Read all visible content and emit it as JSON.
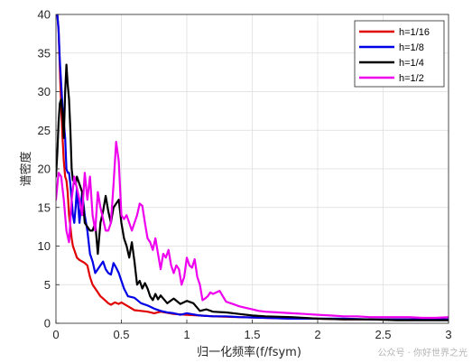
{
  "chart_data": {
    "type": "line",
    "title": "",
    "xlabel": "归一化频率(f/fsym)",
    "ylabel": "谱密度",
    "xlim": [
      0,
      3
    ],
    "ylim": [
      0,
      40
    ],
    "x_ticks": [
      "0",
      "0.5",
      "1",
      "1.5",
      "2",
      "2.5",
      "3"
    ],
    "y_ticks": [
      "0",
      "5",
      "10",
      "15",
      "20",
      "25",
      "30",
      "35",
      "40"
    ],
    "grid": true,
    "legend_position": "top-right",
    "series": [
      {
        "name": "h=1/16",
        "color": "#e00000",
        "x": [
          0.0,
          0.01,
          0.02,
          0.03,
          0.04,
          0.05,
          0.06,
          0.07,
          0.08,
          0.09,
          0.1,
          0.11,
          0.12,
          0.13,
          0.14,
          0.15,
          0.16,
          0.18,
          0.2,
          0.22,
          0.24,
          0.26,
          0.28,
          0.3,
          0.32,
          0.34,
          0.36,
          0.38,
          0.4,
          0.42,
          0.45,
          0.48,
          0.5,
          0.55,
          0.6,
          0.65,
          0.7,
          0.75,
          0.8,
          0.9,
          1.0,
          1.1,
          1.2,
          1.4,
          1.6,
          1.8,
          2.0,
          2.2,
          2.4,
          2.6,
          2.8,
          3.0
        ],
        "y": [
          40,
          40,
          38,
          33,
          28,
          24,
          21,
          19,
          18.5,
          17,
          14,
          12.5,
          11,
          10,
          9.5,
          9,
          8.5,
          8.2,
          8,
          7.8,
          7.5,
          6,
          5,
          4.5,
          4,
          3.5,
          3.2,
          2.9,
          2.6,
          2.4,
          2.7,
          2.5,
          2.7,
          2.2,
          1.7,
          1.6,
          1.5,
          1.3,
          1.5,
          1.2,
          1.1,
          1.0,
          0.9,
          0.8,
          0.7,
          0.6,
          0.6,
          0.5,
          0.5,
          0.5,
          0.5,
          0.5
        ]
      },
      {
        "name": "h=1/8",
        "color": "#0000e6",
        "x": [
          0.0,
          0.01,
          0.02,
          0.03,
          0.04,
          0.05,
          0.06,
          0.07,
          0.08,
          0.09,
          0.1,
          0.11,
          0.12,
          0.13,
          0.14,
          0.15,
          0.16,
          0.18,
          0.2,
          0.22,
          0.24,
          0.26,
          0.28,
          0.3,
          0.32,
          0.34,
          0.36,
          0.38,
          0.4,
          0.42,
          0.44,
          0.46,
          0.48,
          0.5,
          0.52,
          0.55,
          0.6,
          0.65,
          0.7,
          0.75,
          0.8,
          0.85,
          0.9,
          0.95,
          1.0,
          1.1,
          1.2,
          1.3,
          1.4,
          1.6,
          1.8,
          2.0,
          2.2,
          2.4,
          2.6,
          2.8,
          3.0
        ],
        "y": [
          40,
          40,
          38,
          34,
          31,
          28,
          26,
          24,
          20,
          19.5,
          19.5,
          18,
          16,
          14,
          13,
          15,
          17.5,
          13,
          17,
          14,
          12,
          9,
          8,
          6.5,
          7,
          7.5,
          8,
          7,
          6.5,
          6.3,
          7.8,
          7.2,
          6.5,
          5.5,
          4.5,
          3.5,
          3.3,
          2.6,
          2.3,
          1.9,
          1.6,
          1.4,
          1.3,
          1.1,
          1.3,
          1.0,
          0.9,
          0.9,
          0.8,
          0.7,
          0.6,
          0.6,
          0.6,
          0.5,
          0.5,
          0.5,
          0.5
        ]
      },
      {
        "name": "h=1/4",
        "color": "#000000",
        "x": [
          0.0,
          0.01,
          0.02,
          0.03,
          0.04,
          0.05,
          0.06,
          0.07,
          0.08,
          0.09,
          0.1,
          0.11,
          0.12,
          0.13,
          0.14,
          0.15,
          0.16,
          0.18,
          0.2,
          0.22,
          0.24,
          0.26,
          0.28,
          0.3,
          0.32,
          0.34,
          0.36,
          0.38,
          0.4,
          0.42,
          0.44,
          0.46,
          0.48,
          0.5,
          0.52,
          0.54,
          0.56,
          0.58,
          0.6,
          0.62,
          0.64,
          0.66,
          0.68,
          0.7,
          0.72,
          0.74,
          0.76,
          0.78,
          0.8,
          0.85,
          0.9,
          0.95,
          1.0,
          1.05,
          1.1,
          1.15,
          1.2,
          1.3,
          1.4,
          1.5,
          1.6,
          1.8,
          2.0,
          2.2,
          2.4,
          2.6,
          2.8,
          3.0
        ],
        "y": [
          19,
          22,
          26,
          28.5,
          29,
          27,
          24,
          30,
          33.5,
          31,
          29,
          25,
          20,
          18.5,
          18.7,
          18,
          19,
          18,
          17,
          13,
          12.5,
          12,
          12,
          13,
          9,
          13,
          14.5,
          16.5,
          14.5,
          13,
          15,
          15.5,
          16,
          13,
          11,
          10,
          8.5,
          10.5,
          8,
          5,
          5.5,
          4.5,
          5.2,
          4.5,
          3.5,
          3,
          3.8,
          3.1,
          3.6,
          2.6,
          3.2,
          2.5,
          2.9,
          2.6,
          1.6,
          1.8,
          1.5,
          1.4,
          1.2,
          1.0,
          0.9,
          0.8,
          0.6,
          0.5,
          0.5,
          0.4,
          0.4,
          0.4
        ]
      },
      {
        "name": "h=1/2",
        "color": "#ee00ee",
        "x": [
          0.0,
          0.02,
          0.04,
          0.06,
          0.08,
          0.1,
          0.12,
          0.14,
          0.16,
          0.18,
          0.2,
          0.22,
          0.24,
          0.26,
          0.28,
          0.3,
          0.32,
          0.34,
          0.36,
          0.38,
          0.4,
          0.42,
          0.44,
          0.46,
          0.48,
          0.5,
          0.52,
          0.54,
          0.56,
          0.58,
          0.6,
          0.62,
          0.64,
          0.66,
          0.68,
          0.7,
          0.72,
          0.74,
          0.76,
          0.78,
          0.8,
          0.82,
          0.84,
          0.86,
          0.88,
          0.9,
          0.92,
          0.94,
          0.96,
          0.98,
          1.0,
          1.02,
          1.04,
          1.06,
          1.08,
          1.1,
          1.12,
          1.14,
          1.16,
          1.18,
          1.2,
          1.25,
          1.3,
          1.35,
          1.4,
          1.45,
          1.5,
          1.55,
          1.6,
          1.7,
          1.8,
          1.9,
          2.0,
          2.1,
          2.2,
          2.3,
          2.4,
          2.5,
          2.6,
          2.7,
          2.8,
          2.9,
          3.0
        ],
        "y": [
          16,
          19.5,
          19,
          16,
          12,
          10.5,
          16,
          19,
          17.5,
          16,
          14,
          19.5,
          16,
          19,
          14,
          12,
          17,
          15,
          13.5,
          12,
          12,
          13,
          18,
          23.5,
          21,
          14,
          13.5,
          14,
          13,
          12,
          13,
          14,
          15.5,
          15.2,
          13,
          11,
          10.5,
          9.5,
          11,
          9,
          7,
          9,
          8.5,
          9.5,
          7.5,
          6.5,
          7.5,
          7,
          5,
          6,
          8.5,
          7.5,
          7.2,
          8.3,
          6,
          5,
          3,
          3.2,
          3.5,
          4,
          3.8,
          4.2,
          2.8,
          2.5,
          2.2,
          2.0,
          1.8,
          1.6,
          1.5,
          1.4,
          1.3,
          1.2,
          1.1,
          1.0,
          0.9,
          0.9,
          0.8,
          0.8,
          0.8,
          0.8,
          0.7,
          0.7,
          0.8
        ]
      }
    ]
  },
  "watermark": "公众号 · 你好世界之光"
}
